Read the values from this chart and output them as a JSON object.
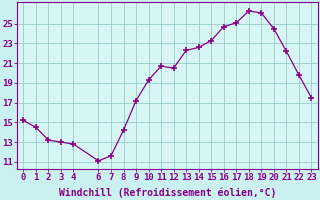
{
  "x": [
    0,
    1,
    2,
    3,
    4,
    6,
    7,
    8,
    9,
    10,
    11,
    12,
    13,
    14,
    15,
    16,
    17,
    18,
    19,
    20,
    21,
    22,
    23
  ],
  "y": [
    15.2,
    14.5,
    13.2,
    13.0,
    12.8,
    11.1,
    11.6,
    14.2,
    17.2,
    19.3,
    20.7,
    20.5,
    22.3,
    22.6,
    23.3,
    24.7,
    25.1,
    26.3,
    26.1,
    24.5,
    22.2,
    19.8,
    17.5
  ],
  "xtick_labels": [
    "0",
    "1",
    "2",
    "3",
    "4",
    "6",
    "7",
    "8",
    "9",
    "10",
    "11",
    "12",
    "13",
    "14",
    "15",
    "16",
    "17",
    "18",
    "19",
    "20",
    "21",
    "22",
    "23"
  ],
  "line_color": "#880088",
  "marker": "+",
  "marker_size": 4,
  "marker_color": "#880088",
  "bg_color": "#caf0f0",
  "grid_color": "#99cccc",
  "xlabel": "Windchill (Refroidissement éolien,°C)",
  "xlabel_fontsize": 7,
  "ytick_vals": [
    11,
    13,
    15,
    17,
    19,
    21,
    23,
    25
  ],
  "xlim": [
    -0.5,
    23.5
  ],
  "ylim": [
    10.3,
    27.2
  ],
  "tick_fontsize": 6.5,
  "spine_color": "#880088",
  "label_color": "#880088",
  "axis_bg": "#d6f5f5"
}
